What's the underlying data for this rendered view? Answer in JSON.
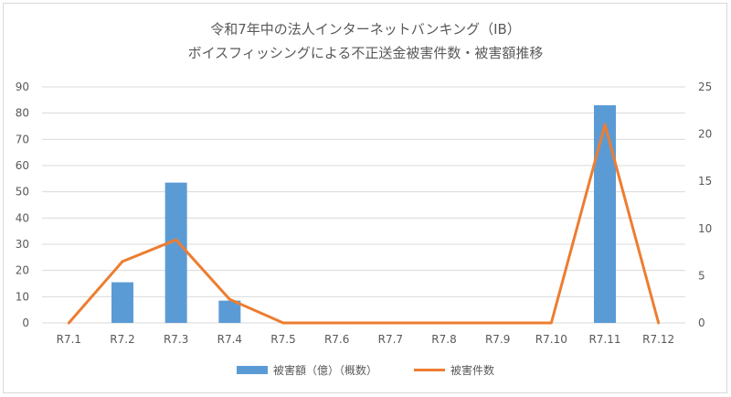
{
  "chart_data": {
    "type": "bar+line",
    "title": "令和7年中の法人インターネットバンキング（IB）",
    "subtitle": "ボイスフィッシングによる不正送金被害件数・被害額推移",
    "categories": [
      "R7.1",
      "R7.2",
      "R7.3",
      "R7.4",
      "R7.5",
      "R7.6",
      "R7.7",
      "R7.8",
      "R7.9",
      "R7.10",
      "R7.11",
      "R7.12"
    ],
    "series": [
      {
        "name": "被害額（億）（概数）",
        "type": "bar",
        "axis": "left",
        "color": "#5b9bd5",
        "values": [
          0,
          15.5,
          53.5,
          8.5,
          0,
          0,
          0,
          0,
          0,
          0,
          83,
          0
        ]
      },
      {
        "name": "被害件数",
        "type": "line",
        "axis": "right",
        "color": "#ed7d31",
        "values": [
          0,
          6.5,
          8.8,
          2.5,
          0,
          0,
          0,
          0,
          0,
          0,
          21,
          0
        ]
      }
    ],
    "y_left": {
      "min": 0,
      "max": 90,
      "ticks": [
        0,
        10,
        20,
        30,
        40,
        50,
        60,
        70,
        80,
        90
      ]
    },
    "y_right": {
      "min": 0,
      "max": 25,
      "ticks": [
        0,
        5,
        10,
        15,
        20,
        25
      ]
    },
    "grid": true,
    "legend_position": "bottom"
  }
}
